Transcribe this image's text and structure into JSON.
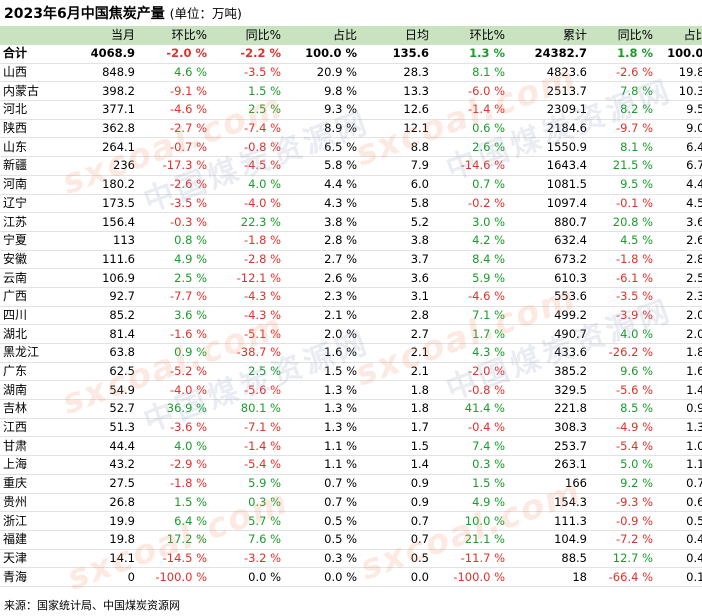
{
  "title": "2023年6月中国焦炭产量",
  "unit_note": "(单位：万吨)",
  "headers": [
    "",
    "当月",
    "环比%",
    "同比%",
    "占比",
    "日均",
    "环比%",
    "累计",
    "同比%",
    "占比%"
  ],
  "rows": [
    [
      "合计",
      "4068.9",
      "-2.0 %",
      "-2.2 %",
      "100.0 %",
      "135.6",
      "1.3 %",
      "24382.7",
      "1.8 %",
      "100.0 %"
    ],
    [
      "山西",
      "848.9",
      "4.6 %",
      "-3.5 %",
      "20.9 %",
      "28.3",
      "8.1 %",
      "4823.6",
      "-2.6 %",
      "19.8 %"
    ],
    [
      "内蒙古",
      "398.2",
      "-9.1 %",
      "1.5 %",
      "9.8 %",
      "13.3",
      "-6.0 %",
      "2513.7",
      "7.8 %",
      "10.3 %"
    ],
    [
      "河北",
      "377.1",
      "-4.6 %",
      "2.5 %",
      "9.3 %",
      "12.6",
      "-1.4 %",
      "2309.1",
      "8.2 %",
      "9.5 %"
    ],
    [
      "陕西",
      "362.8",
      "-2.7 %",
      "-7.4 %",
      "8.9 %",
      "12.1",
      "0.6 %",
      "2184.6",
      "-9.7 %",
      "9.0 %"
    ],
    [
      "山东",
      "264.1",
      "-0.7 %",
      "-0.8 %",
      "6.5 %",
      "8.8",
      "2.6 %",
      "1550.9",
      "8.1 %",
      "6.4 %"
    ],
    [
      "新疆",
      "236",
      "-17.3 %",
      "-4.5 %",
      "5.8 %",
      "7.9",
      "-14.6 %",
      "1643.4",
      "21.5 %",
      "6.7 %"
    ],
    [
      "河南",
      "180.2",
      "-2.6 %",
      "4.0 %",
      "4.4 %",
      "6.0",
      "0.7 %",
      "1081.5",
      "9.5 %",
      "4.4 %"
    ],
    [
      "辽宁",
      "173.5",
      "-3.5 %",
      "-4.0 %",
      "4.3 %",
      "5.8",
      "-0.2 %",
      "1097.4",
      "-0.1 %",
      "4.5 %"
    ],
    [
      "江苏",
      "156.4",
      "-0.3 %",
      "22.3 %",
      "3.8 %",
      "5.2",
      "3.0 %",
      "880.7",
      "20.8 %",
      "3.6 %"
    ],
    [
      "宁夏",
      "113",
      "0.8 %",
      "-1.8 %",
      "2.8 %",
      "3.8",
      "4.2 %",
      "632.4",
      "4.5 %",
      "2.6 %"
    ],
    [
      "安徽",
      "111.6",
      "4.9 %",
      "-2.8 %",
      "2.7 %",
      "3.7",
      "8.4 %",
      "673.2",
      "-1.8 %",
      "2.8 %"
    ],
    [
      "云南",
      "106.9",
      "2.5 %",
      "-12.1 %",
      "2.6 %",
      "3.6",
      "5.9 %",
      "610.3",
      "-6.1 %",
      "2.5 %"
    ],
    [
      "广西",
      "92.7",
      "-7.7 %",
      "-4.3 %",
      "2.3 %",
      "3.1",
      "-4.6 %",
      "553.6",
      "-3.5 %",
      "2.3 %"
    ],
    [
      "四川",
      "85.2",
      "3.6 %",
      "-4.3 %",
      "2.1 %",
      "2.8",
      "7.1 %",
      "499.2",
      "-3.9 %",
      "2.0 %"
    ],
    [
      "湖北",
      "81.4",
      "-1.6 %",
      "-5.1 %",
      "2.0 %",
      "2.7",
      "1.7 %",
      "490.7",
      "4.0 %",
      "2.0 %"
    ],
    [
      "黑龙江",
      "63.8",
      "0.9 %",
      "-38.7 %",
      "1.6 %",
      "2.1",
      "4.3 %",
      "433.6",
      "-26.2 %",
      "1.8 %"
    ],
    [
      "广东",
      "62.5",
      "-5.2 %",
      "2.5 %",
      "1.5 %",
      "2.1",
      "-2.0 %",
      "385.2",
      "9.6 %",
      "1.6 %"
    ],
    [
      "湖南",
      "54.9",
      "-4.0 %",
      "-5.6 %",
      "1.3 %",
      "1.8",
      "-0.8 %",
      "329.5",
      "-5.6 %",
      "1.4 %"
    ],
    [
      "吉林",
      "52.7",
      "36.9 %",
      "80.1 %",
      "1.3 %",
      "1.8",
      "41.4 %",
      "221.8",
      "8.5 %",
      "0.9 %"
    ],
    [
      "江西",
      "51.3",
      "-3.6 %",
      "-7.1 %",
      "1.3 %",
      "1.7",
      "-0.4 %",
      "308.3",
      "-4.9 %",
      "1.3 %"
    ],
    [
      "甘肃",
      "44.4",
      "4.0 %",
      "-1.4 %",
      "1.1 %",
      "1.5",
      "7.4 %",
      "253.7",
      "-5.4 %",
      "1.0 %"
    ],
    [
      "上海",
      "43.2",
      "-2.9 %",
      "-5.4 %",
      "1.1 %",
      "1.4",
      "0.3 %",
      "263.1",
      "5.0 %",
      "1.1 %"
    ],
    [
      "重庆",
      "27.5",
      "-1.8 %",
      "5.9 %",
      "0.7 %",
      "0.9",
      "1.5 %",
      "166",
      "9.2 %",
      "0.7 %"
    ],
    [
      "贵州",
      "26.8",
      "1.5 %",
      "0.3 %",
      "0.7 %",
      "0.9",
      "4.9 %",
      "154.3",
      "-9.3 %",
      "0.6 %"
    ],
    [
      "浙江",
      "19.9",
      "6.4 %",
      "5.7 %",
      "0.5 %",
      "0.7",
      "10.0 %",
      "111.3",
      "-0.9 %",
      "0.5 %"
    ],
    [
      "福建",
      "19.8",
      "17.2 %",
      "7.6 %",
      "0.5 %",
      "0.7",
      "21.1 %",
      "104.9",
      "-7.2 %",
      "0.4 %"
    ],
    [
      "天津",
      "14.1",
      "-14.5 %",
      "-3.2 %",
      "0.3 %",
      "0.5",
      "-11.7 %",
      "88.5",
      "12.7 %",
      "0.4 %"
    ],
    [
      "青海",
      "0",
      "-100.0 %",
      "0.0 %",
      "0.0 %",
      "0.0",
      "-100.0 %",
      "18",
      "-66.4 %",
      "0.1 %"
    ]
  ],
  "source": "来源：国家统计局、中国煤炭资源网",
  "watermark": {
    "en": "sxcoal.com",
    "cn": "中国煤炭资源网"
  },
  "colors": {
    "header_bg": "#c9e3c1",
    "positive": "#1a9c2a",
    "negative": "#e0302a"
  }
}
